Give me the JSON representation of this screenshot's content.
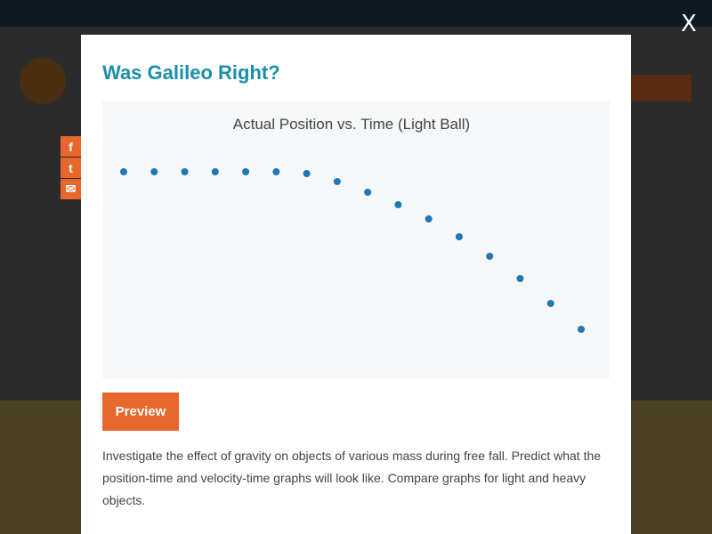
{
  "modal": {
    "title": "Was Galileo Right?",
    "close_label": "X",
    "preview_label": "Preview",
    "description": "Investigate the effect of gravity on objects of various mass during free fall. Predict what the position-time and velocity-time graphs will look like. Compare graphs for light and heavy objects."
  },
  "share": [
    {
      "icon": "facebook-icon",
      "glyph": "f"
    },
    {
      "icon": "twitter-icon",
      "glyph": "t"
    },
    {
      "icon": "email-icon",
      "glyph": "✉"
    }
  ],
  "colors": {
    "accent": "#e8672c",
    "title": "#1a8fa8",
    "points": "#1f77b4"
  },
  "chart_data": {
    "type": "scatter",
    "title": "Actual Position vs. Time (Light Ball)",
    "x": [
      1,
      2,
      3,
      4,
      5,
      6,
      7,
      8,
      9,
      10,
      11,
      12,
      13,
      14,
      15,
      16
    ],
    "y": [
      0,
      0,
      0,
      0,
      0,
      0,
      -0.2,
      -1.1,
      -2.3,
      -3.7,
      -5.3,
      -7.3,
      -9.5,
      -12.0,
      -14.8,
      -17.7
    ],
    "grid": false,
    "axes_visible": false
  }
}
